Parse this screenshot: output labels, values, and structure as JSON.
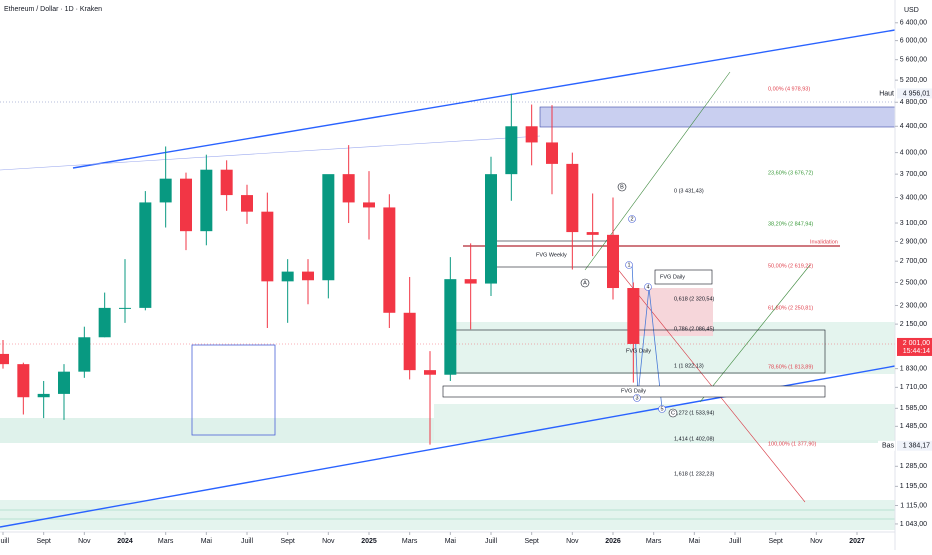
{
  "chart_data": {
    "type": "candlestick",
    "title": "Ethereum / Dollar · 1D · Kraken",
    "y_axis_label": "USD",
    "log_scale": true,
    "grid": false,
    "up_color": "#089981",
    "down_color": "#f23645",
    "x": [
      "2023-06",
      "2023-07",
      "2023-08",
      "2023-09",
      "2023-10",
      "2023-11",
      "2023-12",
      "2024-01",
      "2024-02",
      "2024-03",
      "2024-04",
      "2024-05",
      "2024-06",
      "2024-07",
      "2024-08",
      "2024-09",
      "2024-10",
      "2024-11",
      "2024-12",
      "2025-01",
      "2025-02",
      "2025-03",
      "2025-04",
      "2025-05",
      "2025-06",
      "2025-07",
      "2025-08",
      "2025-09",
      "2025-10",
      "2025-11",
      "2025-12",
      "2026-01",
      "2026-02"
    ],
    "open": [
      1870,
      1930,
      1860,
      1650,
      1670,
      1810,
      2050,
      2280,
      2280,
      3340,
      3640,
      3010,
      3760,
      3430,
      3230,
      2510,
      2600,
      2520,
      3700,
      3340,
      3280,
      2240,
      1820,
      1790,
      2530,
      2490,
      3700,
      4400,
      4150,
      3840,
      3000,
      2970,
      2450
    ],
    "high": [
      1930,
      2030,
      1870,
      1750,
      1860,
      2130,
      2410,
      2720,
      3480,
      4090,
      3720,
      3970,
      3890,
      3560,
      3460,
      2720,
      2720,
      3680,
      4110,
      3740,
      3440,
      2550,
      1950,
      2740,
      2880,
      3940,
      4950,
      4760,
      4750,
      4000,
      3450,
      3400,
      2500
    ],
    "low": [
      1630,
      1830,
      1550,
      1530,
      1520,
      1770,
      2050,
      2160,
      2260,
      3050,
      2810,
      2860,
      3240,
      3090,
      2120,
      2160,
      2310,
      2360,
      3100,
      2920,
      2120,
      1760,
      1390,
      1750,
      2110,
      2380,
      3360,
      3820,
      3440,
      2620,
      2750,
      2350,
      1740
    ],
    "close": [
      1930,
      1860,
      1650,
      1670,
      1810,
      2050,
      2280,
      2280,
      3340,
      3640,
      3010,
      3760,
      3430,
      3230,
      2510,
      2600,
      2520,
      3700,
      3340,
      3280,
      2240,
      1820,
      1790,
      2530,
      2490,
      3700,
      4400,
      4150,
      3840,
      3000,
      2970,
      2450,
      2001
    ],
    "xlim": [
      "2023-07",
      "2027-01"
    ],
    "xticks": [
      {
        "value": "2023-07",
        "label": "Juill"
      },
      {
        "value": "2023-09",
        "label": "Sept"
      },
      {
        "value": "2023-11",
        "label": "Nov"
      },
      {
        "value": "2024-01",
        "label": "2024"
      },
      {
        "value": "2024-03",
        "label": "Mars"
      },
      {
        "value": "2024-05",
        "label": "Mai"
      },
      {
        "value": "2024-07",
        "label": "Juill"
      },
      {
        "value": "2024-09",
        "label": "Sept"
      },
      {
        "value": "2024-11",
        "label": "Nov"
      },
      {
        "value": "2025-01",
        "label": "2025"
      },
      {
        "value": "2025-03",
        "label": "Mars"
      },
      {
        "value": "2025-05",
        "label": "Mai"
      },
      {
        "value": "2025-07",
        "label": "Juill"
      },
      {
        "value": "2025-09",
        "label": "Sept"
      },
      {
        "value": "2025-11",
        "label": "Nov"
      },
      {
        "value": "2026-01",
        "label": "2026"
      },
      {
        "value": "2026-03",
        "label": "Mars"
      },
      {
        "value": "2026-05",
        "label": "Mai"
      },
      {
        "value": "2026-07",
        "label": "Juill"
      },
      {
        "value": "2026-09",
        "label": "Sept"
      },
      {
        "value": "2026-11",
        "label": "Nov"
      },
      {
        "value": "2027-01",
        "label": "2027"
      }
    ],
    "ylim": [
      1013,
      6950
    ],
    "yticks": [
      {
        "value": 6400,
        "label": "6 400,00"
      },
      {
        "value": 6000,
        "label": "6 000,00"
      },
      {
        "value": 5600,
        "label": "5 600,00"
      },
      {
        "value": 5200,
        "label": "5 200,00"
      },
      {
        "value": 4800,
        "label": "4 800,00"
      },
      {
        "value": 4400,
        "label": "4 400,00"
      },
      {
        "value": 4000,
        "label": "4 000,00"
      },
      {
        "value": 3700,
        "label": "3 700,00"
      },
      {
        "value": 3400,
        "label": "3 400,00"
      },
      {
        "value": 3100,
        "label": "3 100,00"
      },
      {
        "value": 2900,
        "label": "2 900,00"
      },
      {
        "value": 2700,
        "label": "2 700,00"
      },
      {
        "value": 2500,
        "label": "2 500,00"
      },
      {
        "value": 2300,
        "label": "2 300,00"
      },
      {
        "value": 2150,
        "label": "2 150,00"
      },
      {
        "value": 1830,
        "label": "1 830,00"
      },
      {
        "value": 1710,
        "label": "1 710,00"
      },
      {
        "value": 1585,
        "label": "1 585,00"
      },
      {
        "value": 1485,
        "label": "1 485,00"
      },
      {
        "value": 1285,
        "label": "1 285,00"
      },
      {
        "value": 1195,
        "label": "1 195,00"
      },
      {
        "value": 1115,
        "label": "1 115,00"
      },
      {
        "value": 1043,
        "label": "1 043,00"
      }
    ],
    "last_price": {
      "value": 2001,
      "label": "2 001,00",
      "countdown": "15:44:14"
    },
    "high_marker": {
      "name": "Haut",
      "value": 4956.01,
      "label": "4 956,01"
    },
    "low_marker": {
      "name": "Bas",
      "value": 1384.17,
      "label": "1 384,17"
    },
    "annotations": [
      "0,00% (4 978,93)",
      "23,60% (3 676,72)",
      "38,20% (2 847,94)",
      "50,00% (2 619,22)",
      "61,80% (2 250,81)",
      "78,60% (1 813,89)",
      "100,00% (1 377,90)",
      "0 (3 431,43)",
      "0,618 (2 320,54)",
      "0,786 (2 086,45)",
      "1 (1 822,13)",
      "1,272 (1 533,94)",
      "1,414 (1 402,08)",
      "1,618 (1 232,23)",
      "Invalidation",
      "FVG Weekly",
      "FVG Daily",
      "FVG Daily",
      "FVG Daily",
      "A",
      "B",
      "C",
      "1",
      "2",
      "3",
      "4",
      "5"
    ]
  }
}
